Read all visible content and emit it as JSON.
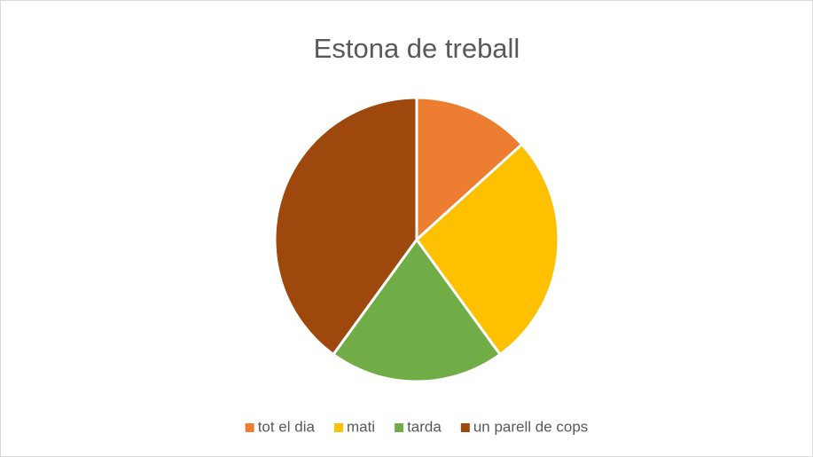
{
  "chart_data": {
    "type": "pie",
    "title": "Estona de treball",
    "categories": [
      "tot el dia",
      "mati",
      "tarda",
      "un parell de cops"
    ],
    "values": [
      13.3,
      26.7,
      20,
      40
    ],
    "colors": [
      "#ed7d31",
      "#ffc000",
      "#70ad47",
      "#9e480e"
    ],
    "legend": "bottom"
  }
}
